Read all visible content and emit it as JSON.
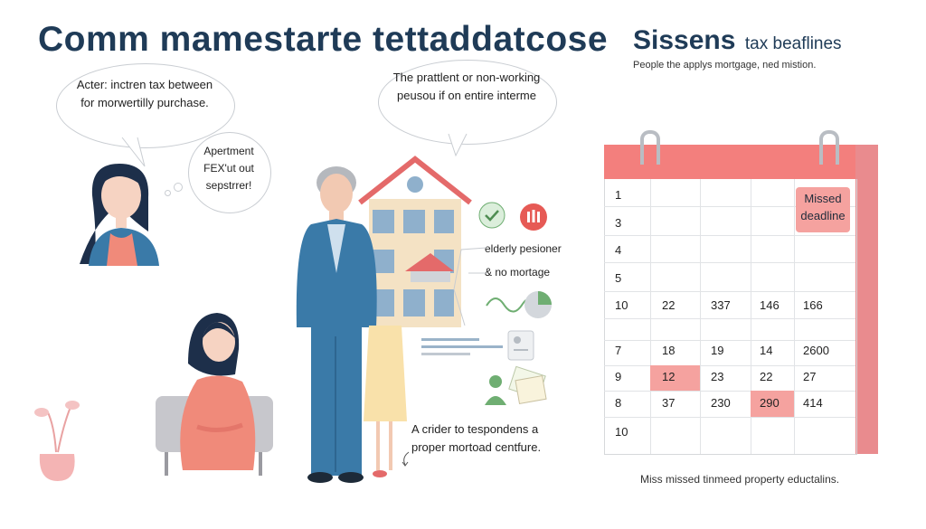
{
  "header": {
    "main_title": "Comm mamestarte tettaddatcose",
    "side_title_big": "Sissens",
    "side_title_small": "tax beaflines",
    "side_subtitle": "People the applys mortgage, ned mistion."
  },
  "bubbles": {
    "left_line1": "Acter: inctren tax between",
    "left_line2": "for morwertilly purchase.",
    "center_line1": "The prattlent or non-working",
    "center_line2": "peusou if on entire interme",
    "thought_line1": "Apertment",
    "thought_line2": "FEX'ut out",
    "thought_line3": "sepstrrer!"
  },
  "legend": {
    "elderly": "elderly pesioner",
    "no_mortgage": "& no mortage"
  },
  "bottom_note": {
    "line1": "A crider to tespondens a",
    "line2": "proper mortoad centfure."
  },
  "calendar": {
    "missed_label_line1": "Missed",
    "missed_label_line2": "deadline",
    "caption": "Miss missed tinmeed property eductalins.",
    "rows": [
      {
        "label": "1",
        "cells": [
          "",
          "",
          "",
          ""
        ]
      },
      {
        "label": "3",
        "cells": [
          "",
          "",
          "",
          ""
        ]
      },
      {
        "label": "4",
        "cells": [
          "",
          "",
          "",
          ""
        ]
      },
      {
        "label": "5",
        "cells": [
          "",
          "",
          "",
          ""
        ]
      },
      {
        "label": "10",
        "cells": [
          "22",
          "337",
          "146",
          "166"
        ]
      },
      {
        "label": "",
        "cells": [
          "",
          "",
          "",
          ""
        ]
      },
      {
        "label": "7",
        "cells": [
          "18",
          "19",
          "14",
          "2600"
        ]
      },
      {
        "label": "9",
        "cells": [
          "12",
          "23",
          "22",
          "27"
        ]
      },
      {
        "label": "8",
        "cells": [
          "37",
          "230",
          "290",
          "414"
        ]
      },
      {
        "label": "10",
        "cells": [
          "",
          "",
          "",
          ""
        ]
      }
    ]
  },
  "colors": {
    "accent": "#f37f7d",
    "title": "#1f3b57",
    "jacket": "#3a7aa8",
    "sweater": "#f08a7a"
  }
}
